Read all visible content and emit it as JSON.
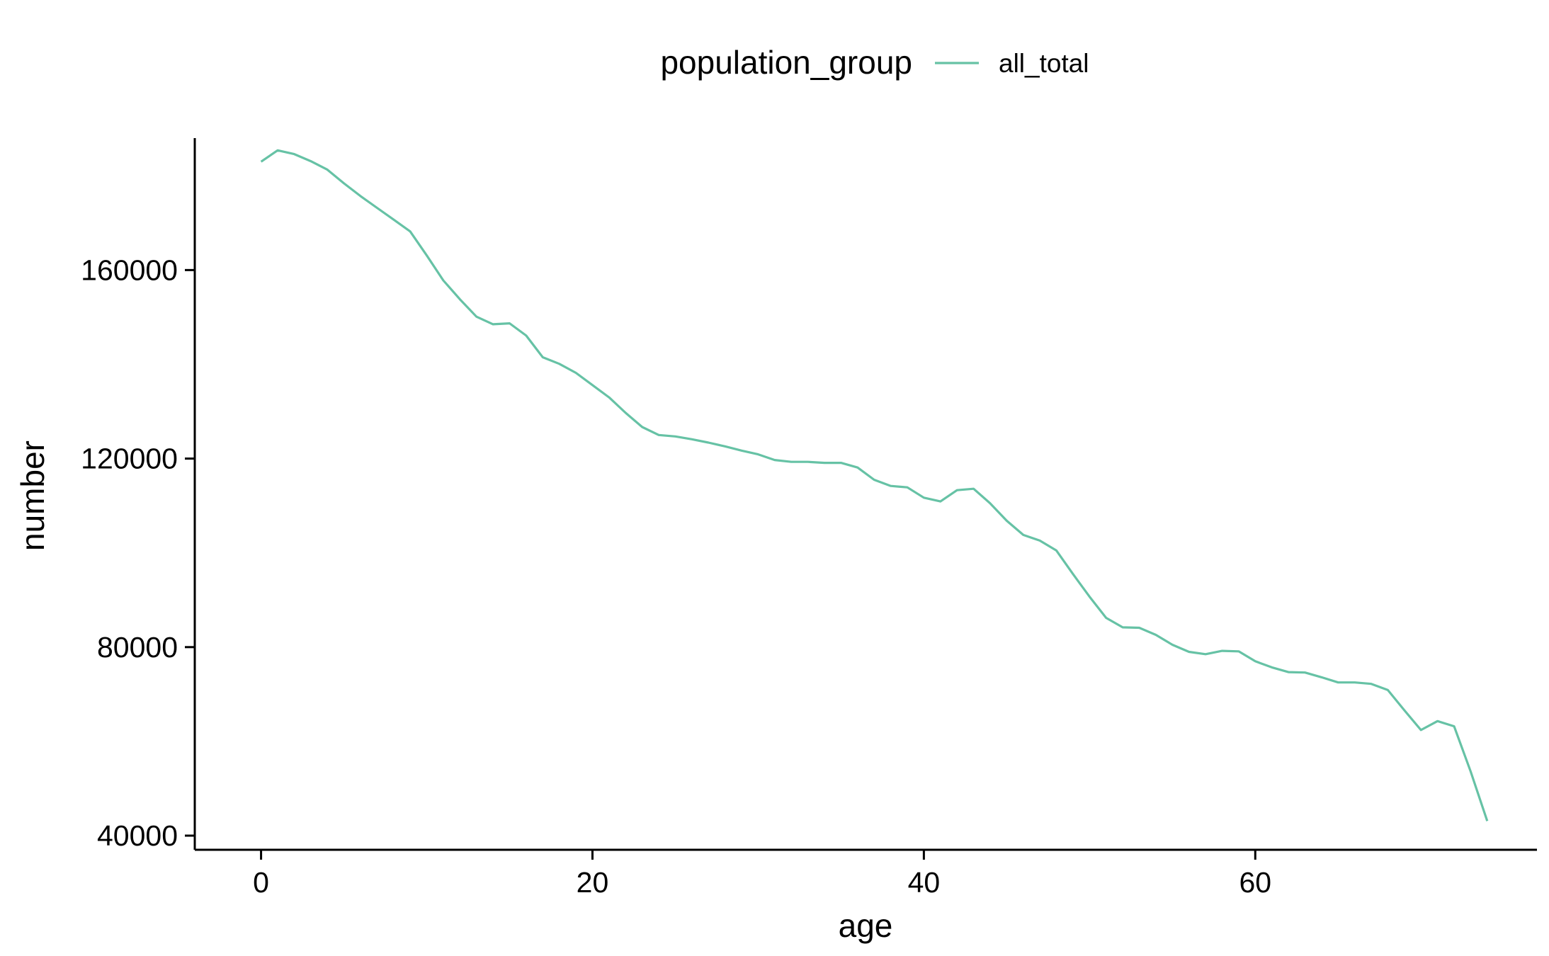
{
  "legend": {
    "title": "population_group",
    "position": "top"
  },
  "chart_data": {
    "type": "line",
    "xlabel": "age",
    "ylabel": "number",
    "xlim": [
      -4,
      77
    ],
    "ylim": [
      37000,
      188000
    ],
    "x_ticks": [
      0,
      20,
      40,
      60
    ],
    "x_tick_labels": [
      "0",
      "20",
      "40",
      "60"
    ],
    "y_ticks": [
      40000,
      80000,
      120000,
      160000
    ],
    "y_tick_labels": [
      "40000",
      "80000",
      "120000",
      "160000"
    ],
    "grid": false,
    "series": [
      {
        "name": "all_total",
        "color": "#66C2A5",
        "x": [
          0,
          1,
          2,
          3,
          4,
          5,
          6,
          7,
          8,
          9,
          10,
          11,
          12,
          13,
          14,
          15,
          16,
          17,
          18,
          19,
          20,
          21,
          22,
          23,
          24,
          25,
          26,
          27,
          28,
          29,
          30,
          31,
          32,
          33,
          34,
          35,
          36,
          37,
          38,
          39,
          40,
          41,
          42,
          43,
          44,
          45,
          46,
          47,
          48,
          49,
          50,
          51,
          52,
          53,
          54,
          55,
          56,
          57,
          58,
          59,
          60,
          61,
          62,
          63,
          64,
          65,
          66,
          67,
          68,
          69,
          70,
          71,
          72,
          73,
          74
        ],
        "values": [
          183000,
          185400,
          184600,
          183100,
          181300,
          178400,
          175700,
          173200,
          170700,
          168200,
          163100,
          157800,
          153800,
          150100,
          148500,
          148700,
          146100,
          141500,
          140100,
          138200,
          135600,
          133000,
          129700,
          126700,
          125000,
          124700,
          124100,
          123400,
          122600,
          121700,
          120900,
          119700,
          119300,
          119300,
          119100,
          119100,
          118100,
          115500,
          114200,
          113900,
          111700,
          110900,
          113300,
          113600,
          110500,
          106800,
          103800,
          102600,
          100500,
          95500,
          90700,
          86200,
          84200,
          84100,
          82600,
          80500,
          79000,
          78500,
          79200,
          79100,
          77000,
          75700,
          74700,
          74600,
          73600,
          72500,
          72500,
          72200,
          70900,
          66600,
          62400,
          64300,
          63200,
          53600,
          43100
        ]
      }
    ]
  }
}
